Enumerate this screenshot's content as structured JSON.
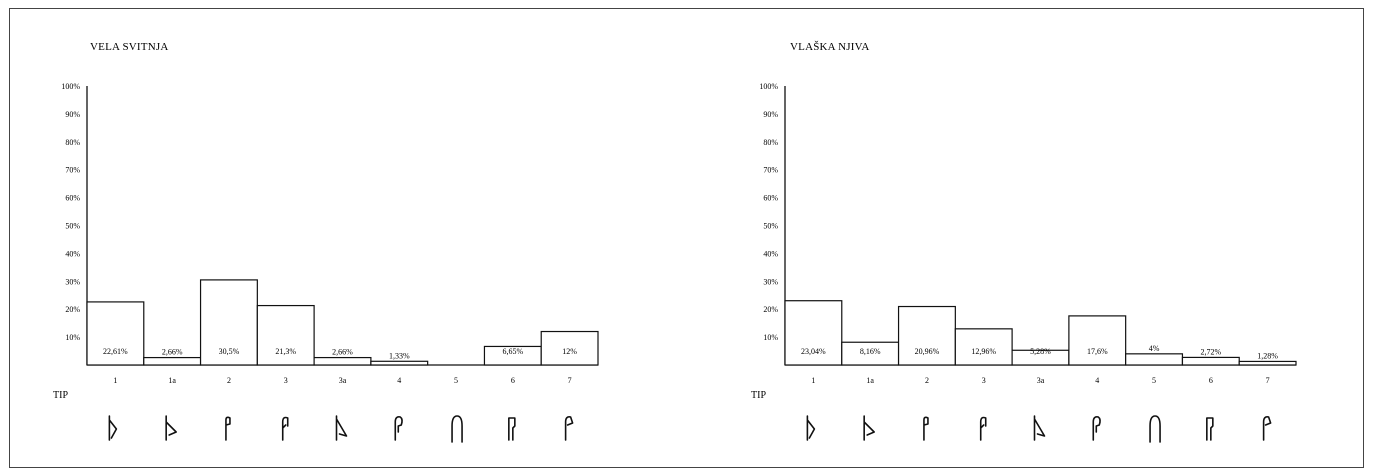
{
  "chart_data": [
    {
      "type": "bar",
      "title": "VELA SVITNJA",
      "xlabel": "TIP",
      "ylabel": "",
      "ylim": [
        0,
        100
      ],
      "y_ticks": [
        "10%",
        "20%",
        "30%",
        "40%",
        "50%",
        "60%",
        "70%",
        "80%",
        "90%",
        "100%"
      ],
      "categories": [
        "1",
        "1a",
        "2",
        "3",
        "3a",
        "4",
        "5",
        "6",
        "7"
      ],
      "values": [
        22.61,
        2.66,
        30.5,
        21.3,
        2.66,
        1.33,
        0,
        6.65,
        12
      ],
      "value_labels": [
        "22,61%",
        "2,66%",
        "30,5%",
        "21,3%",
        "2,66%",
        "1,33%",
        "",
        "6,65%",
        "12%"
      ],
      "grid": false,
      "legend": "none"
    },
    {
      "type": "bar",
      "title": "VLAŠKA NJIVA",
      "xlabel": "TIP",
      "ylabel": "",
      "ylim": [
        0,
        100
      ],
      "y_ticks": [
        "10%",
        "20%",
        "30%",
        "40%",
        "50%",
        "60%",
        "70%",
        "80%",
        "90%",
        "100%"
      ],
      "categories": [
        "1",
        "1a",
        "2",
        "3",
        "3a",
        "4",
        "5",
        "6",
        "7"
      ],
      "values": [
        23.04,
        8.16,
        20.96,
        12.96,
        5.28,
        17.6,
        4,
        2.72,
        1.28
      ],
      "value_labels": [
        "23,04%",
        "8,16%",
        "20,96%",
        "12,96%",
        "5,28%",
        "17,6%",
        "4%",
        "2,72%",
        "1,28%"
      ],
      "grid": false,
      "legend": "none"
    }
  ],
  "profile_icons": [
    "rim-profile-type-1-icon",
    "rim-profile-type-1a-icon",
    "rim-profile-type-2-icon",
    "rim-profile-type-3-icon",
    "rim-profile-type-3a-icon",
    "rim-profile-type-4-icon",
    "rim-profile-type-5-icon",
    "rim-profile-type-6-icon",
    "rim-profile-type-7-icon"
  ]
}
